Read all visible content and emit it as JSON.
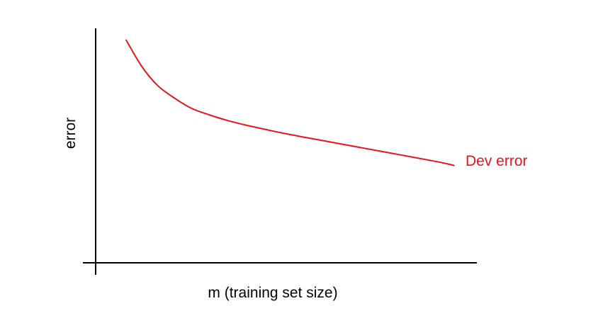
{
  "chart_data": {
    "type": "line",
    "title": "",
    "xlabel": "m (training set size)",
    "ylabel": "error",
    "xlim": [
      0,
      100
    ],
    "ylim": [
      0,
      100
    ],
    "grid": false,
    "legend": "none",
    "series": [
      {
        "name": "Dev error",
        "color": "#e8141b",
        "x": [
          8,
          12,
          16,
          20,
          25,
          30,
          35,
          40,
          50,
          60,
          70,
          80,
          90,
          94
        ],
        "y": [
          95,
          84,
          76,
          71,
          66,
          63,
          60.5,
          58.5,
          55,
          52,
          49,
          46,
          43,
          41.5
        ]
      }
    ]
  }
}
